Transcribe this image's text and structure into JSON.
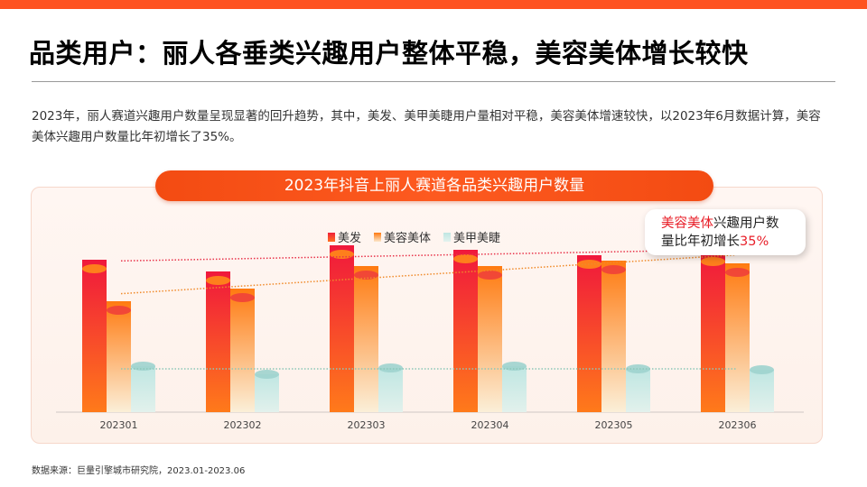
{
  "header": {
    "title": "品类用户：丽人各垂类兴趣用户整体平稳，美容美体增长较快",
    "description": "2023年，丽人赛道兴趣用户数量呈现显著的回升趋势，其中，美发、美甲美睫用户量相对平稳，美容美体增速较快，以2023年6月数据计算，美容美体兴趣用户数量比年初增长了35%。"
  },
  "callout": {
    "highlight": "美容美体",
    "text1": "兴趣用户数",
    "text2": "量比年初增长",
    "value": "35%"
  },
  "source": "数据来源：巨量引擎城市研究院，2023.01-2023.06",
  "colors": {
    "brand": "#fe5220",
    "hair": "#f0303c",
    "beauty": "#ff8a1c",
    "nail": "#a9ddd8"
  },
  "chart_data": {
    "type": "bar",
    "title": "2023年抖音上丽人赛道各品类兴趣用户数量",
    "categories": [
      "202301",
      "202302",
      "202303",
      "202304",
      "202305",
      "202306"
    ],
    "series": [
      {
        "name": "美发",
        "values": [
          169,
          156,
          185,
          180,
          174,
          177
        ]
      },
      {
        "name": "美容美体",
        "values": [
          123,
          137,
          162,
          162,
          168,
          165
        ]
      },
      {
        "name": "美甲美睫",
        "values": [
          51,
          42,
          49,
          51,
          48,
          47
        ]
      }
    ],
    "value_scale": "relative (no y-axis printed)",
    "trendlines": true,
    "grid": false,
    "legend": "top-center"
  }
}
